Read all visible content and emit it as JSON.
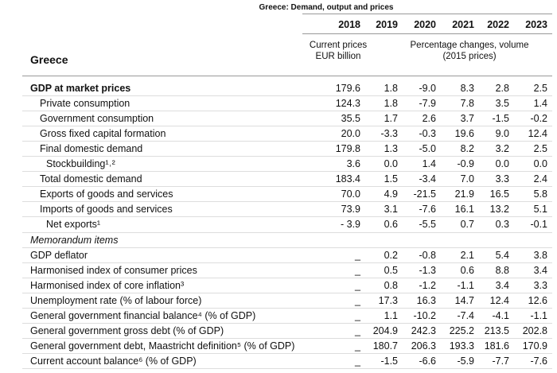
{
  "header": {
    "title": "Greece: Demand, output and prices",
    "years": [
      "2018",
      "2019",
      "2020",
      "2021",
      "2022",
      "2023"
    ],
    "country": "Greece",
    "unit_current": [
      "Current prices",
      "EUR billion"
    ],
    "unit_change": [
      "Percentage changes, volume",
      "(2015 prices)"
    ]
  },
  "table": {
    "rows": [
      [
        "GDP at market prices",
        "179.6",
        "1.8",
        "-9.0",
        "8.3",
        "2.8",
        "2.5"
      ],
      [
        "Private consumption",
        "124.3",
        "1.8",
        "-7.9",
        "7.8",
        "3.5",
        "1.4"
      ],
      [
        "Government consumption",
        "35.5",
        "1.7",
        "2.6",
        "3.7",
        "-1.5",
        "-0.2"
      ],
      [
        "Gross fixed capital formation",
        "20.0",
        "-3.3",
        "-0.3",
        "19.6",
        "9.0",
        "12.4"
      ],
      [
        "Final domestic demand",
        "179.8",
        "1.3",
        "-5.0",
        "8.2",
        "3.2",
        "2.5"
      ],
      [
        "Stockbuilding¹˒²",
        "3.6",
        "0.0",
        "1.4",
        "-0.9",
        "0.0",
        "0.0"
      ],
      [
        "Total domestic demand",
        "183.4",
        "1.5",
        "-3.4",
        "7.0",
        "3.3",
        "2.4"
      ],
      [
        "Exports of goods and services",
        "70.0",
        "4.9",
        "-21.5",
        "21.9",
        "16.5",
        "5.8"
      ],
      [
        "Imports of goods and services",
        "73.9",
        "3.1",
        "-7.6",
        "16.1",
        "13.2",
        "5.1"
      ],
      [
        "Net exports¹",
        "- 3.9",
        "0.6",
        "-5.5",
        "0.7",
        "0.3",
        "-0.1"
      ]
    ],
    "memo_title": "Memorandum items",
    "memo_rows": [
      [
        "GDP deflator",
        "_",
        "0.2",
        "-0.8",
        "2.1",
        "5.4",
        "3.8"
      ],
      [
        "Harmonised index of consumer prices",
        "_",
        "0.5",
        "-1.3",
        "0.6",
        "8.8",
        "3.4"
      ],
      [
        "Harmonised index of core inflation³",
        "_",
        "0.8",
        "-1.2",
        "-1.1",
        "3.4",
        "3.3"
      ],
      [
        "Unemployment rate (% of labour force)",
        "_",
        "17.3",
        "16.3",
        "14.7",
        "12.4",
        "12.6"
      ],
      [
        "General government financial balance⁴ (% of GDP)",
        "_",
        "1.1",
        "-10.2",
        "-7.4",
        "-4.1",
        "-1.1"
      ],
      [
        "General government gross debt (% of GDP)",
        "_",
        "204.9",
        "242.3",
        "225.2",
        "213.5",
        "202.8"
      ],
      [
        "General government debt, Maastricht definition⁵ (% of GDP)",
        "_",
        "180.7",
        "206.3",
        "193.3",
        "181.6",
        "170.9"
      ],
      [
        "Current account balance⁶ (% of GDP)",
        "_",
        "-1.5",
        "-6.6",
        "-5.9",
        "-7.7",
        "-7.6"
      ]
    ]
  }
}
